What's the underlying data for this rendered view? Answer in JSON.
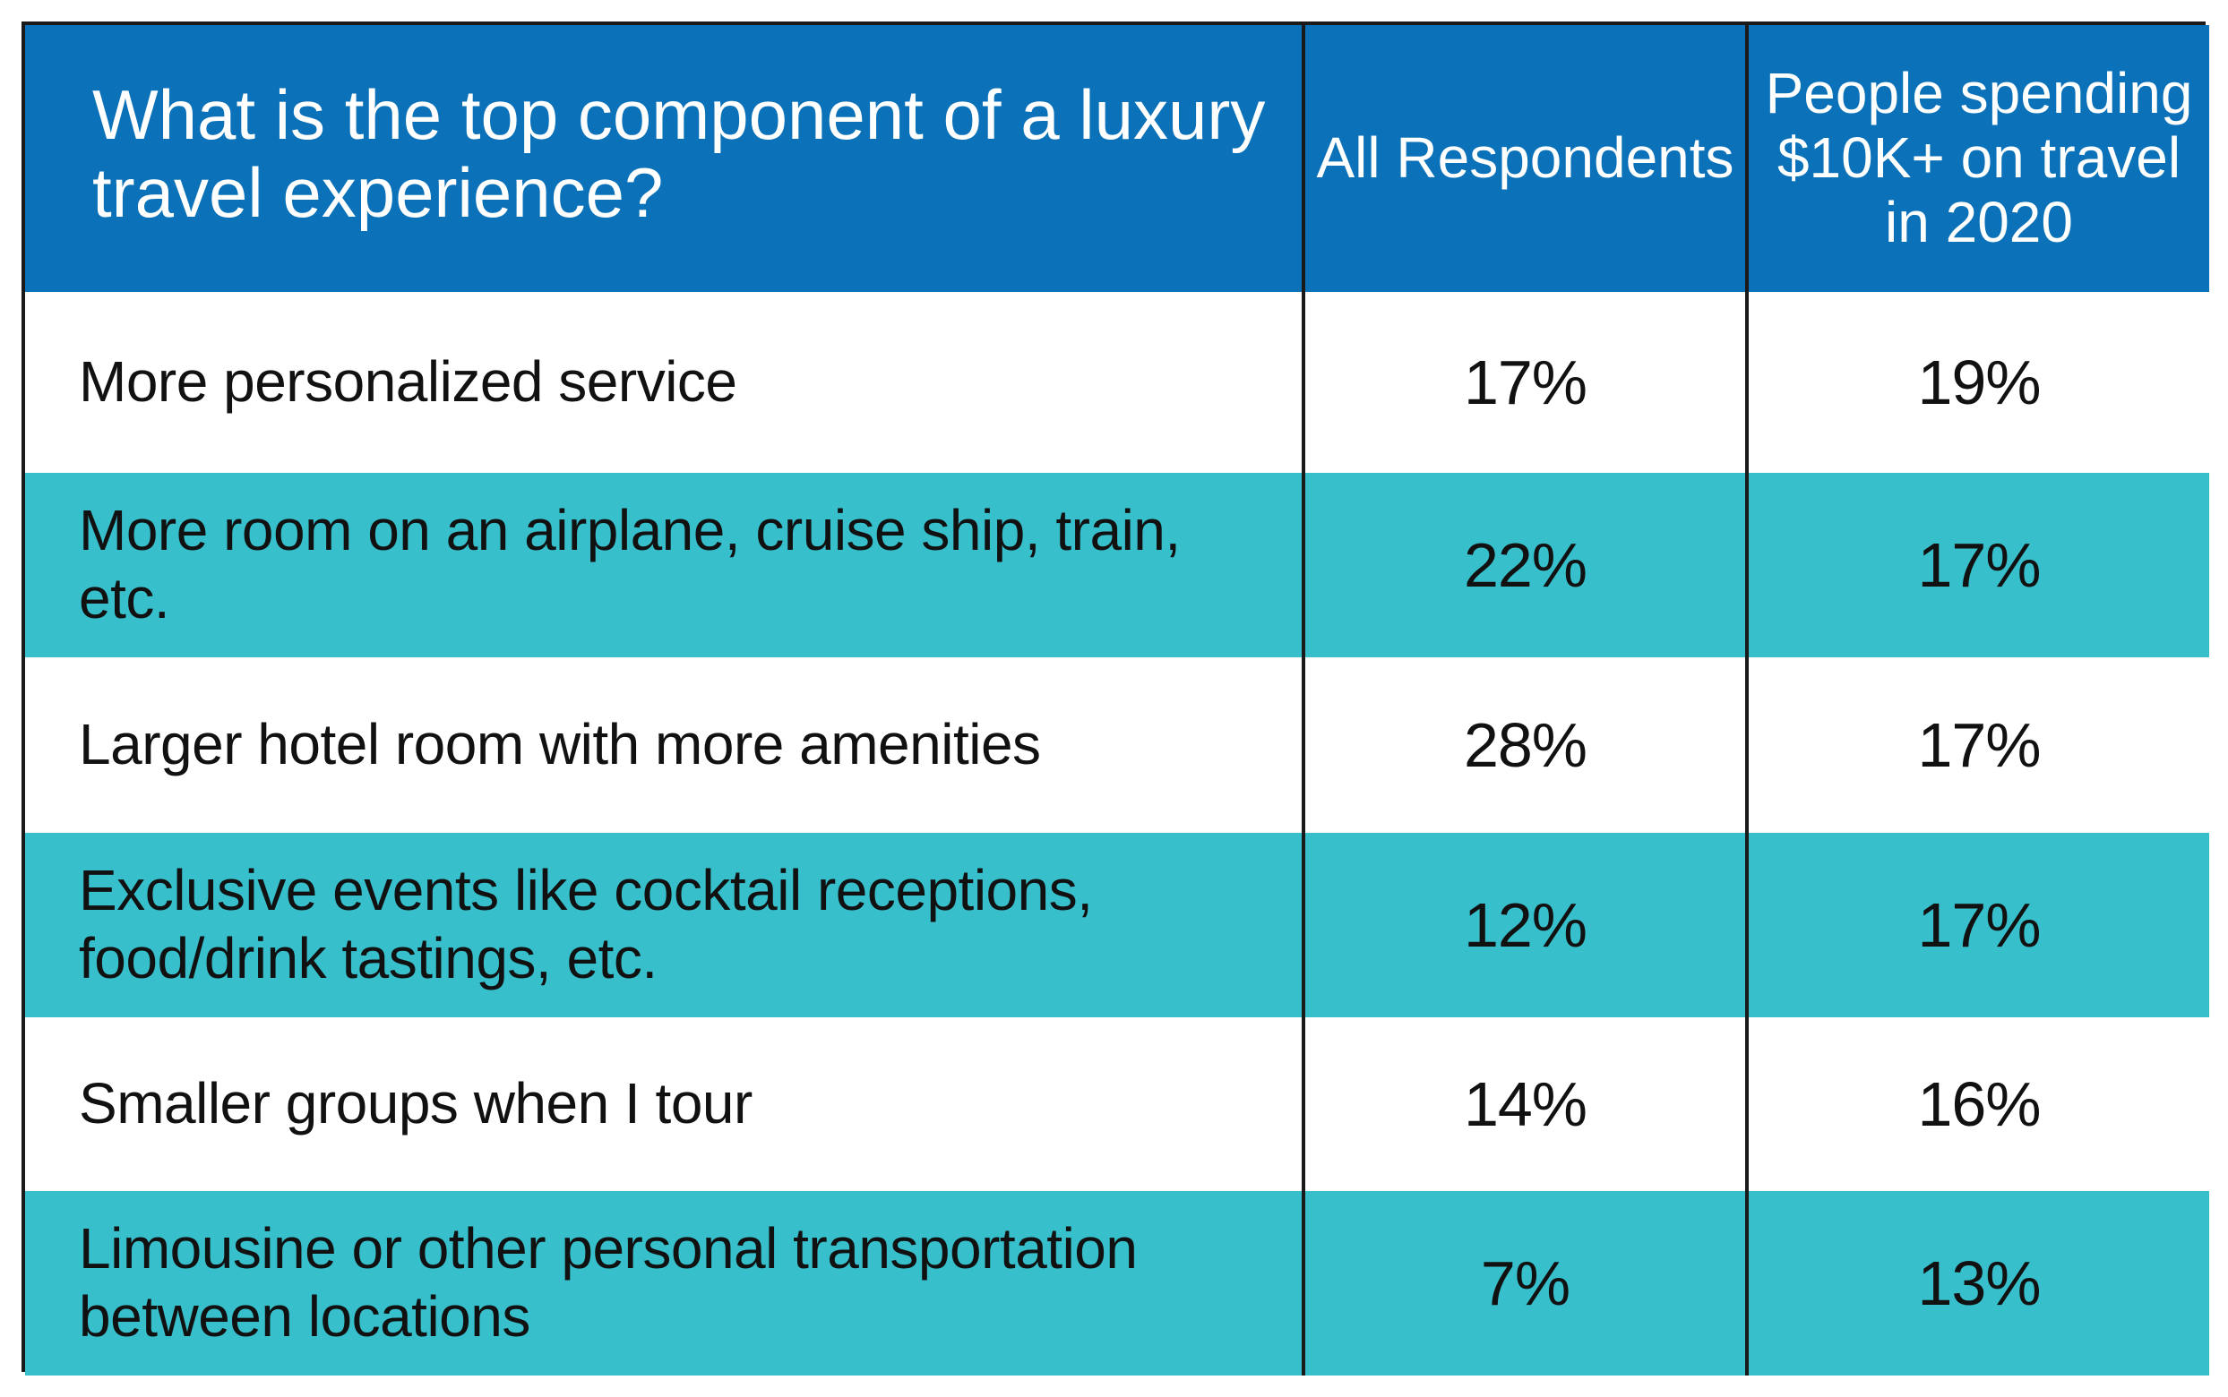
{
  "colors": {
    "header_bg": "#0b72b9",
    "header_text": "#ffffff",
    "row_alt_bg": "#37bfcb",
    "row_bg": "#ffffff",
    "border": "#1a1a1a"
  },
  "chart_data": {
    "type": "table",
    "title": "What is the top component of a luxury travel experience?",
    "columns": [
      "All Respondents",
      "People spending $10K+ on travel in 2020"
    ],
    "rows": [
      {
        "label": "More personalized service",
        "values": [
          "17%",
          "19%"
        ]
      },
      {
        "label": "More room on an airplane, cruise ship, train, etc.",
        "values": [
          "22%",
          "17%"
        ]
      },
      {
        "label": "Larger hotel room with more amenities",
        "values": [
          "28%",
          "17%"
        ]
      },
      {
        "label": "Exclusive events like cocktail receptions, food/drink tastings, etc.",
        "values": [
          "12%",
          "17%"
        ]
      },
      {
        "label": "Smaller groups when I tour",
        "values": [
          "14%",
          "16%"
        ]
      },
      {
        "label": "Limousine or other personal transportation between locations",
        "values": [
          "7%",
          "13%"
        ]
      }
    ]
  }
}
